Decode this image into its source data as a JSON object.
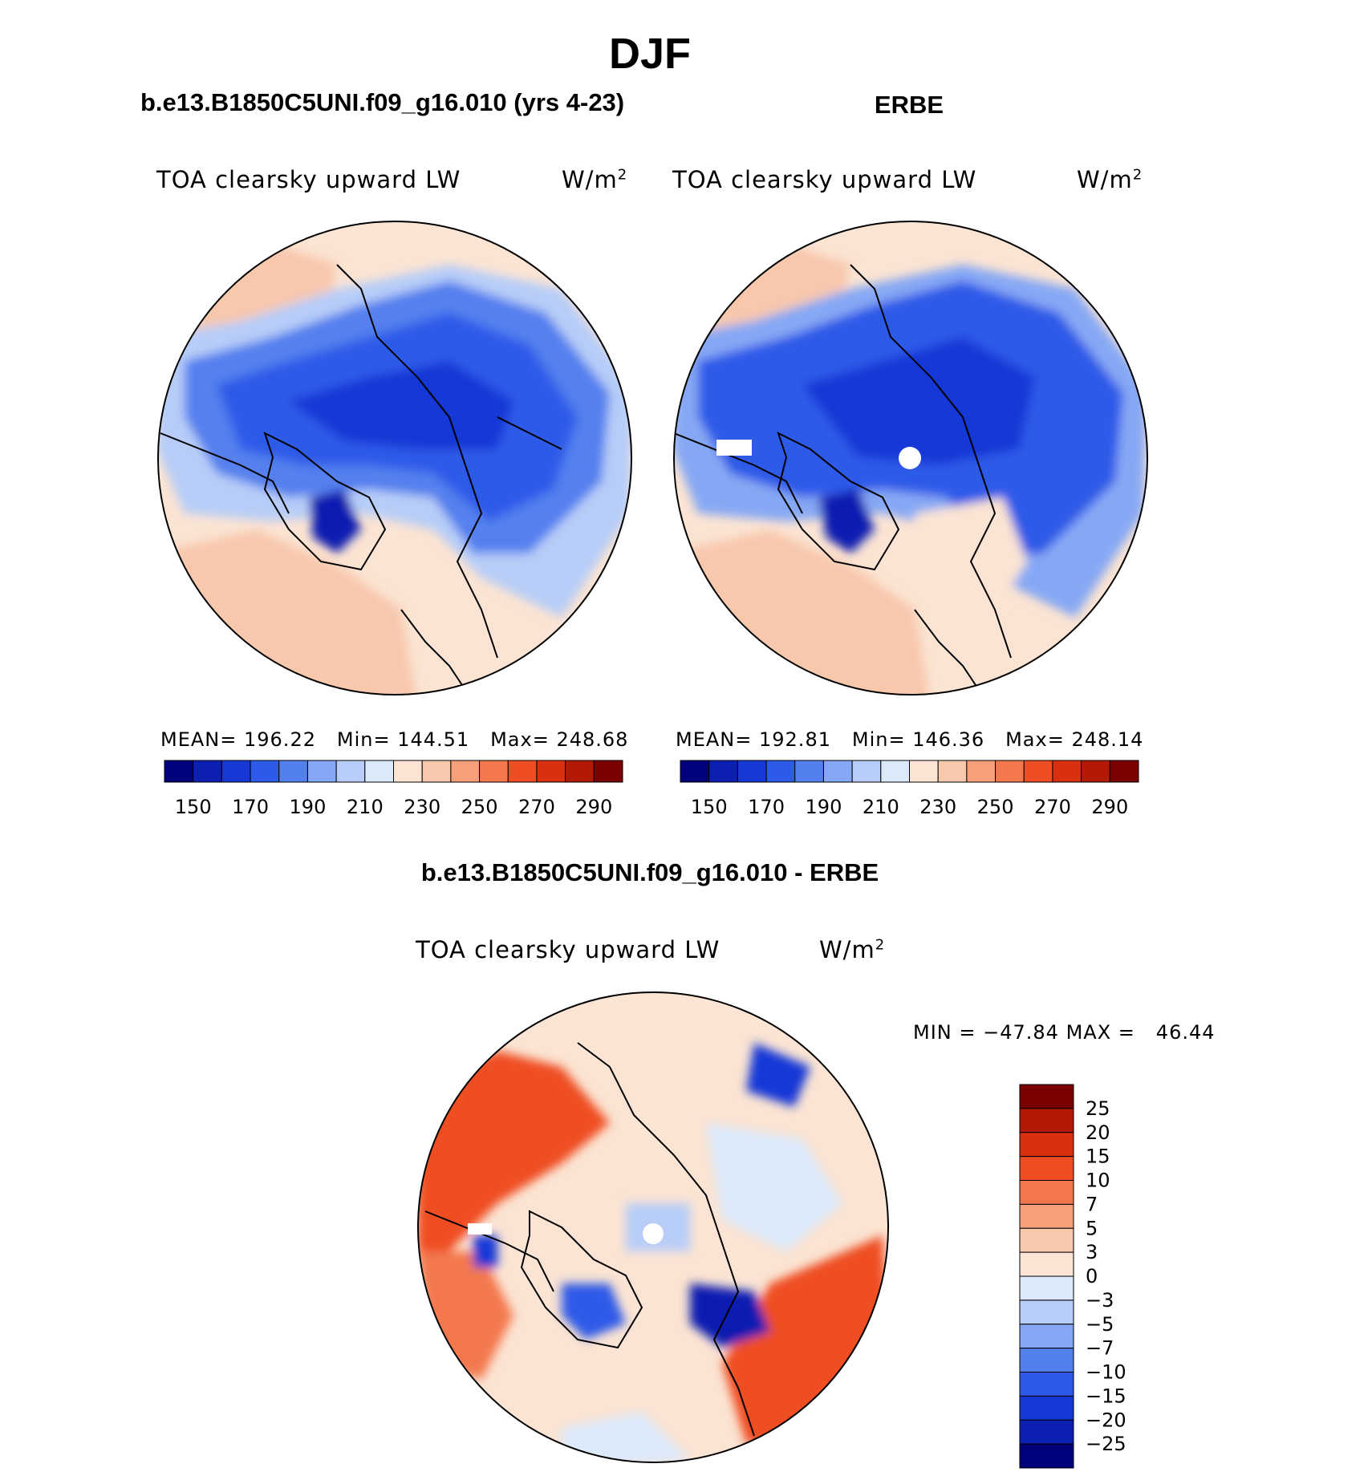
{
  "figure": {
    "season": "DJF",
    "colors": {
      "abs_scale": [
        "#00007a",
        "#0b1fb0",
        "#1838d6",
        "#2d5ae8",
        "#5480ee",
        "#86a8f4",
        "#b7cdf8",
        "#dce9fb",
        "#fbe4d3",
        "#f8c8ad",
        "#f5a07a",
        "#f3784e",
        "#ef4d24",
        "#d9310f",
        "#b31a06",
        "#7a0000"
      ],
      "diff_scale": [
        "#00007a",
        "#0b1fb0",
        "#1838d6",
        "#2d5ae8",
        "#5480ee",
        "#86a8f4",
        "#b7cdf8",
        "#dce9fb",
        "#fbe4d3",
        "#f8c8ad",
        "#f5a07a",
        "#f3784e",
        "#ef4d24",
        "#d9310f",
        "#b31a06",
        "#7a0000"
      ]
    }
  },
  "panels": {
    "model": {
      "header": "b.e13.B1850C5UNI.f09_g16.010 (yrs 4-23)",
      "variable": "TOA clearsky upward LW",
      "units": "W/m",
      "units_sup": "2",
      "stats": {
        "mean_label": "MEAN=",
        "mean": "196.22",
        "min_label": "Min=",
        "min": "144.51",
        "max_label": "Max=",
        "max": "248.68"
      },
      "colorbar_labels": [
        "150",
        "170",
        "190",
        "210",
        "230",
        "250",
        "270",
        "290"
      ]
    },
    "obs": {
      "header": "ERBE",
      "variable": "TOA clearsky upward LW",
      "units": "W/m",
      "units_sup": "2",
      "stats": {
        "mean_label": "MEAN=",
        "mean": "192.81",
        "min_label": "Min=",
        "min": "146.36",
        "max_label": "Max=",
        "max": "248.14"
      },
      "colorbar_labels": [
        "150",
        "170",
        "190",
        "210",
        "230",
        "250",
        "270",
        "290"
      ]
    },
    "diff": {
      "header": "b.e13.B1850C5UNI.f09_g16.010 - ERBE",
      "variable": "TOA clearsky upward LW",
      "units": "W/m",
      "units_sup": "2",
      "minmax": {
        "min_label": "MIN =",
        "min": "−47.84",
        "max_label": "MAX =",
        "max": "46.44"
      },
      "colorbar_labels": [
        "25",
        "20",
        "15",
        "10",
        "7",
        "5",
        "3",
        "0",
        "−3",
        "−5",
        "−7",
        "−10",
        "−15",
        "−20",
        "−25"
      ]
    }
  }
}
